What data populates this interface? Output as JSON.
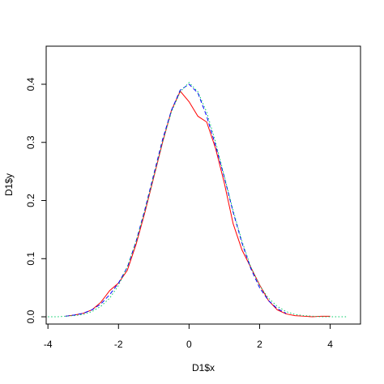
{
  "chart_data": {
    "type": "line",
    "x_label": "D1$x",
    "y_label": "D1$y",
    "x": [
      -4,
      -3.75,
      -3.5,
      -3.25,
      -3,
      -2.75,
      -2.5,
      -2.25,
      -2,
      -1.75,
      -1.5,
      -1.25,
      -1,
      -0.75,
      -0.5,
      -0.25,
      0,
      0.25,
      0.5,
      0.75,
      1,
      1.25,
      1.5,
      1.75,
      2,
      2.25,
      2.5,
      2.75,
      3,
      3.25,
      3.5,
      3.75,
      4,
      4.25,
      4.5
    ],
    "series": [
      {
        "color": "#ff0000",
        "dash": "solid",
        "values": [
          null,
          null,
          0.001,
          0.003,
          0.006,
          0.012,
          0.025,
          0.045,
          0.058,
          0.08,
          0.125,
          0.18,
          0.24,
          0.3,
          0.355,
          0.388,
          0.37,
          0.345,
          0.335,
          0.29,
          0.23,
          0.16,
          0.115,
          0.085,
          0.055,
          0.028,
          0.012,
          0.005,
          0.002,
          0.001,
          0,
          0.001,
          0.001,
          null,
          null
        ]
      },
      {
        "color": "#0000ff",
        "dash": "dashed",
        "values": [
          null,
          null,
          0.001,
          0.003,
          0.006,
          0.012,
          0.022,
          0.038,
          0.058,
          0.085,
          0.13,
          0.185,
          0.245,
          0.305,
          0.355,
          0.39,
          0.4,
          0.385,
          0.345,
          0.295,
          0.24,
          0.18,
          0.127,
          0.083,
          0.05,
          0.028,
          0.014,
          0.006,
          null,
          null,
          null,
          null,
          null,
          null,
          null
        ]
      },
      {
        "color": "#00cd66",
        "dash": "dotted",
        "values": [
          0,
          0,
          0.001,
          0.002,
          0.004,
          0.009,
          0.018,
          0.032,
          0.054,
          0.086,
          0.13,
          0.183,
          0.242,
          0.301,
          0.352,
          0.387,
          0.403,
          0.387,
          0.352,
          0.301,
          0.242,
          0.183,
          0.13,
          0.086,
          0.054,
          0.032,
          0.018,
          0.009,
          0.004,
          0.002,
          0.001,
          0,
          0,
          0,
          0
        ]
      }
    ],
    "xlim": [
      -4.05,
      4.86
    ],
    "ylim": [
      -0.0125,
      0.4655
    ],
    "xticks": [
      -4,
      -2,
      0,
      2,
      4
    ],
    "yticks": [
      {
        "value": 0,
        "label": "0.0"
      },
      0.1,
      0.2,
      0.3,
      0.4
    ]
  }
}
